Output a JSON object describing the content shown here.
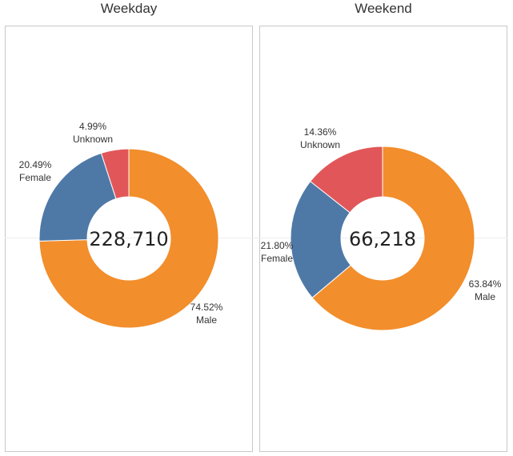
{
  "chart_data": [
    {
      "type": "pie",
      "title": "Weekday",
      "total": "228,710",
      "slices": [
        {
          "name": "Male",
          "percent": 74.52,
          "percent_label": "74.52%",
          "color": "#F28E2B"
        },
        {
          "name": "Female",
          "percent": 20.49,
          "percent_label": "20.49%",
          "color": "#4E79A7"
        },
        {
          "name": "Unknown",
          "percent": 4.99,
          "percent_label": "4.99%",
          "color": "#E15759"
        }
      ]
    },
    {
      "type": "pie",
      "title": "Weekend",
      "total": "66,218",
      "slices": [
        {
          "name": "Male",
          "percent": 63.84,
          "percent_label": "63.84%",
          "color": "#F28E2B"
        },
        {
          "name": "Female",
          "percent": 21.8,
          "percent_label": "21.80%",
          "color": "#4E79A7"
        },
        {
          "name": "Unknown",
          "percent": 14.36,
          "percent_label": "14.36%",
          "color": "#E15759"
        }
      ]
    }
  ]
}
